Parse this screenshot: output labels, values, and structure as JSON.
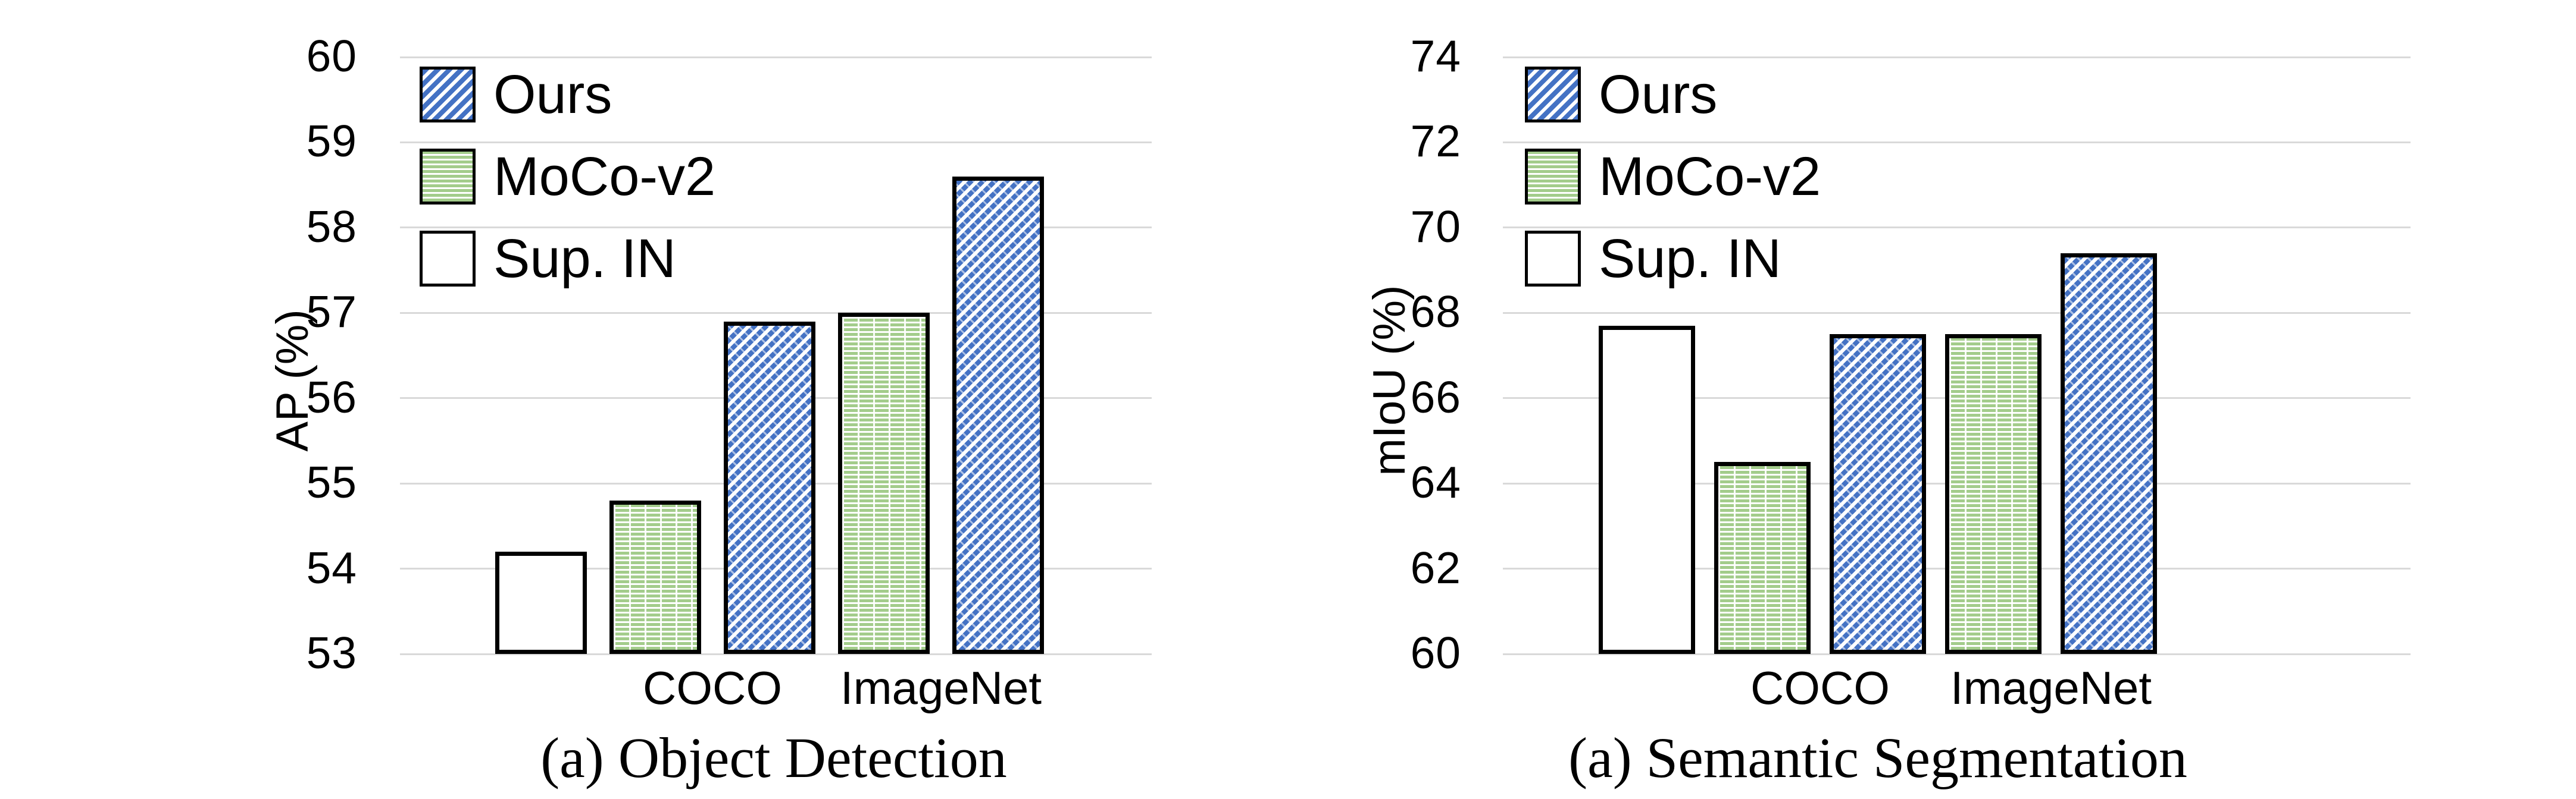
{
  "colors": {
    "background": "#FFFFFF",
    "gridline": "#D9D9D9",
    "text": "#000000",
    "bar_border": "#000000",
    "ours_blue": "#4472C4",
    "moco_green": "#A3CC8B",
    "sup_white": "#FFFFFF"
  },
  "chart_data": [
    {
      "type": "bar",
      "title": "(a) Object Detection",
      "xlabel": "",
      "ylabel": "AP (%)",
      "ylim": [
        53,
        60
      ],
      "yticks": [
        53,
        54,
        55,
        56,
        57,
        58,
        59,
        60
      ],
      "grid": true,
      "legend_position": "top-left",
      "legend": [
        {
          "label": "Ours",
          "hatch": "diagonal",
          "color": "#4472C4"
        },
        {
          "label": "MoCo-v2",
          "hatch": "horizontal",
          "color": "#A3CC8B"
        },
        {
          "label": "Sup. IN",
          "hatch": "none",
          "color": "#FFFFFF"
        }
      ],
      "categories": [
        "",
        "COCO",
        "ImageNet"
      ],
      "groups": [
        {
          "label": "",
          "bars": [
            {
              "series": "Sup. IN",
              "value": 54.2
            }
          ]
        },
        {
          "label": "COCO",
          "bars": [
            {
              "series": "MoCo-v2",
              "value": 54.8
            },
            {
              "series": "Ours",
              "value": 56.9
            }
          ]
        },
        {
          "label": "ImageNet",
          "bars": [
            {
              "series": "MoCo-v2",
              "value": 57.0
            },
            {
              "series": "Ours",
              "value": 58.6
            }
          ]
        }
      ]
    },
    {
      "type": "bar",
      "title": "(a) Semantic Segmentation",
      "xlabel": "",
      "ylabel": "mIoU (%)",
      "ylim": [
        60,
        74
      ],
      "yticks": [
        60,
        62,
        64,
        66,
        68,
        70,
        72,
        74
      ],
      "grid": true,
      "legend_position": "top-left",
      "legend": [
        {
          "label": "Ours",
          "hatch": "diagonal",
          "color": "#4472C4"
        },
        {
          "label": "MoCo-v2",
          "hatch": "horizontal",
          "color": "#A3CC8B"
        },
        {
          "label": "Sup. IN",
          "hatch": "none",
          "color": "#FFFFFF"
        }
      ],
      "categories": [
        "",
        "COCO",
        "ImageNet"
      ],
      "groups": [
        {
          "label": "",
          "bars": [
            {
              "series": "Sup. IN",
              "value": 67.7
            }
          ]
        },
        {
          "label": "COCO",
          "bars": [
            {
              "series": "MoCo-v2",
              "value": 64.5
            },
            {
              "series": "Ours",
              "value": 67.5
            }
          ]
        },
        {
          "label": "ImageNet",
          "bars": [
            {
              "series": "MoCo-v2",
              "value": 67.5
            },
            {
              "series": "Ours",
              "value": 69.4
            }
          ]
        }
      ]
    }
  ]
}
